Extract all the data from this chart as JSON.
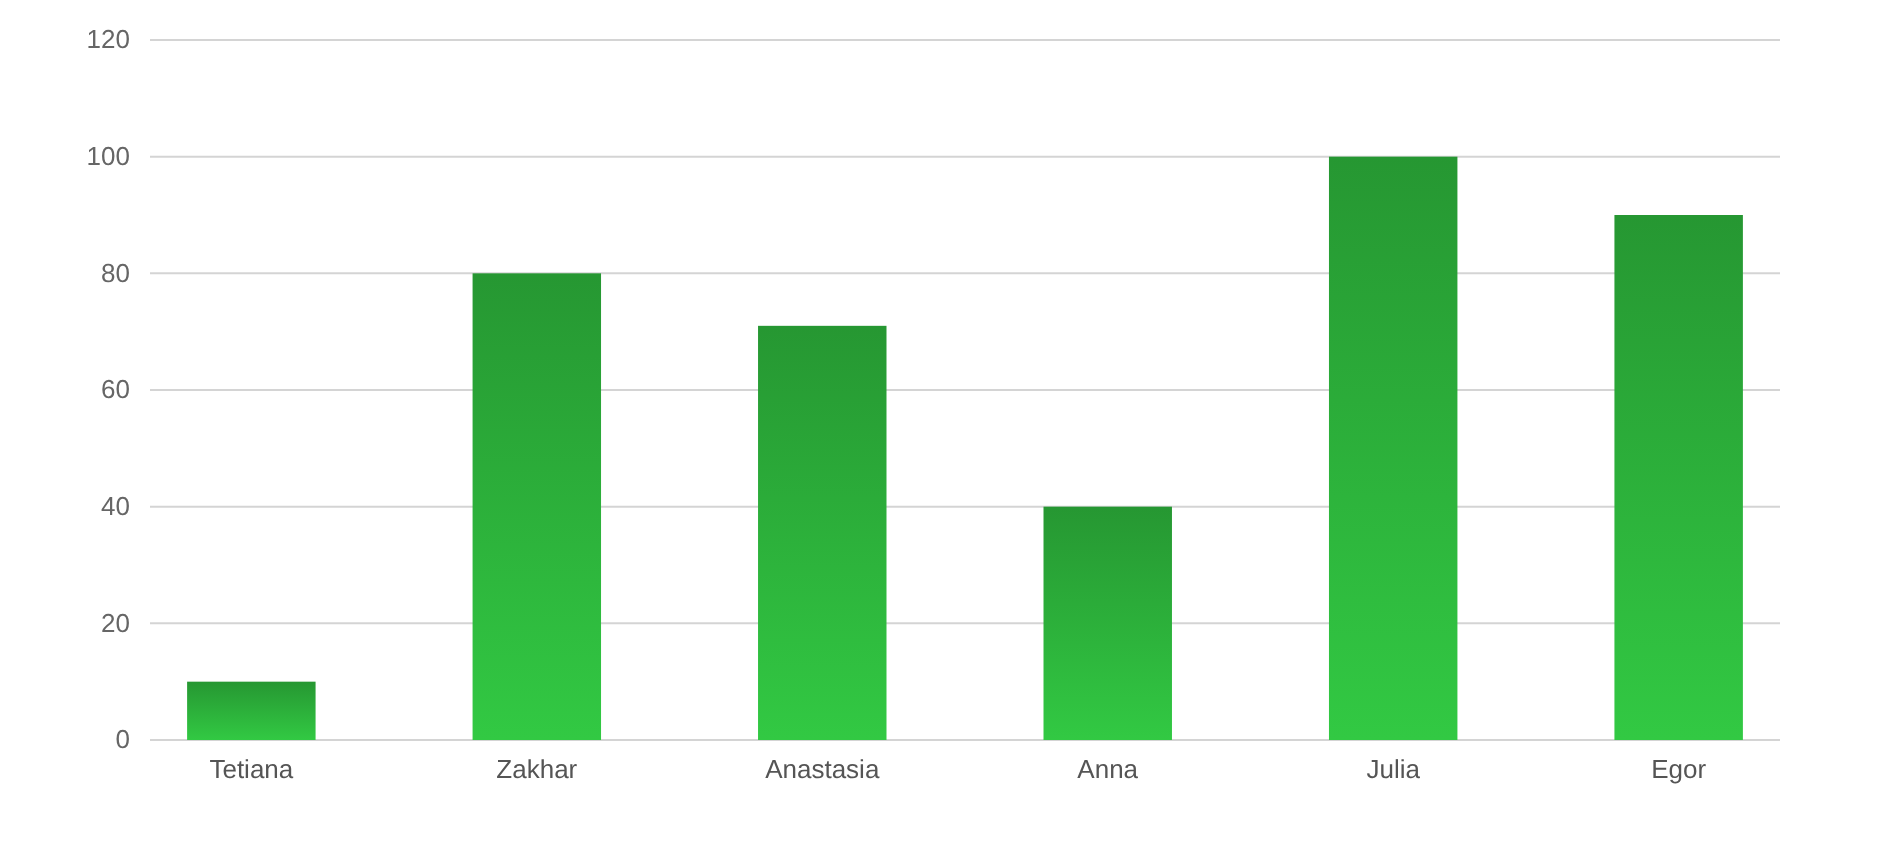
{
  "chart_data": {
    "type": "bar",
    "categories": [
      "Tetiana",
      "Zakhar",
      "Anastasia",
      "Anna",
      "Julia",
      "Egor"
    ],
    "values": [
      10,
      80,
      71,
      40,
      100,
      90
    ],
    "color": "#2aa838",
    "ylim": [
      0,
      120
    ],
    "yticks": [
      0,
      20,
      40,
      60,
      80,
      100,
      120
    ],
    "grid": "y"
  }
}
